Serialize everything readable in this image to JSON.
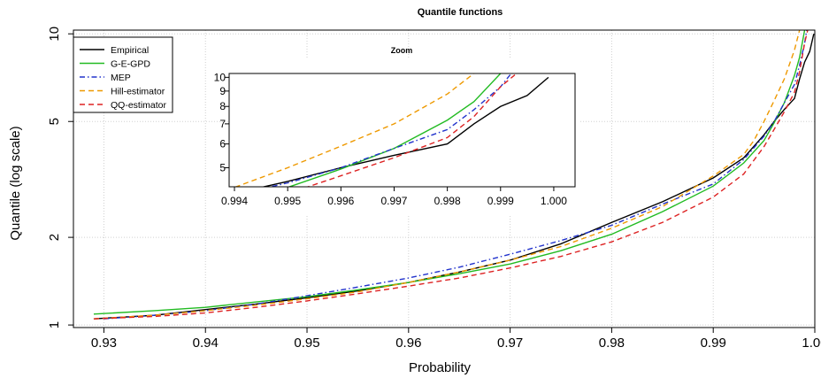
{
  "chart_data": {
    "type": "line",
    "title": "Quantile functions",
    "xlabel": "Probability",
    "ylabel": "Quantile (log scale)",
    "y_scale": "log",
    "xlim": [
      0.927,
      1.0
    ],
    "ylim": [
      0.98,
      10.3
    ],
    "x_ticks": [
      "0.93",
      "0.94",
      "0.95",
      "0.96",
      "0.97",
      "0.98",
      "0.99",
      "1.00"
    ],
    "y_ticks": [
      "1",
      "2",
      "5",
      "10"
    ],
    "grid": true,
    "legend_position": "top-left",
    "series": [
      {
        "name": "Empirical",
        "color": "#000000",
        "dash": "solid",
        "points": [
          [
            0.929,
            1.05
          ],
          [
            0.935,
            1.08
          ],
          [
            0.94,
            1.13
          ],
          [
            0.945,
            1.18
          ],
          [
            0.95,
            1.24
          ],
          [
            0.955,
            1.31
          ],
          [
            0.96,
            1.4
          ],
          [
            0.965,
            1.52
          ],
          [
            0.97,
            1.67
          ],
          [
            0.975,
            1.9
          ],
          [
            0.98,
            2.25
          ],
          [
            0.985,
            2.65
          ],
          [
            0.99,
            3.2
          ],
          [
            0.993,
            3.75
          ],
          [
            0.995,
            4.5
          ],
          [
            0.996,
            5.0
          ],
          [
            0.997,
            5.5
          ],
          [
            0.998,
            6.0
          ],
          [
            0.9985,
            7.0
          ],
          [
            0.999,
            8.0
          ],
          [
            0.9995,
            8.7
          ],
          [
            0.9999,
            10.0
          ]
        ]
      },
      {
        "name": "G-E-GPD",
        "color": "#22bb22",
        "dash": "solid",
        "points": [
          [
            0.929,
            1.09
          ],
          [
            0.935,
            1.12
          ],
          [
            0.94,
            1.15
          ],
          [
            0.945,
            1.2
          ],
          [
            0.95,
            1.25
          ],
          [
            0.955,
            1.32
          ],
          [
            0.96,
            1.4
          ],
          [
            0.965,
            1.5
          ],
          [
            0.97,
            1.62
          ],
          [
            0.975,
            1.8
          ],
          [
            0.98,
            2.05
          ],
          [
            0.985,
            2.45
          ],
          [
            0.99,
            3.0
          ],
          [
            0.993,
            3.6
          ],
          [
            0.995,
            4.3
          ],
          [
            0.996,
            4.95
          ],
          [
            0.997,
            5.8
          ],
          [
            0.998,
            7.2
          ],
          [
            0.9985,
            8.3
          ],
          [
            0.999,
            10.3
          ]
        ]
      },
      {
        "name": "MEP",
        "color": "#2233cc",
        "dash": "dashdot",
        "points": [
          [
            0.93,
            1.05
          ],
          [
            0.935,
            1.08
          ],
          [
            0.94,
            1.12
          ],
          [
            0.945,
            1.18
          ],
          [
            0.95,
            1.26
          ],
          [
            0.955,
            1.35
          ],
          [
            0.96,
            1.45
          ],
          [
            0.965,
            1.58
          ],
          [
            0.97,
            1.75
          ],
          [
            0.975,
            1.95
          ],
          [
            0.98,
            2.2
          ],
          [
            0.985,
            2.6
          ],
          [
            0.99,
            3.05
          ],
          [
            0.993,
            3.7
          ],
          [
            0.995,
            4.45
          ],
          [
            0.996,
            5.0
          ],
          [
            0.997,
            5.8
          ],
          [
            0.998,
            6.7
          ],
          [
            0.9985,
            7.8
          ],
          [
            0.999,
            9.3
          ],
          [
            0.9992,
            10.3
          ]
        ]
      },
      {
        "name": "Hill-estimator",
        "color": "#ee9900",
        "dash": "dashed",
        "points": [
          [
            0.929,
            1.05
          ],
          [
            0.935,
            1.08
          ],
          [
            0.94,
            1.12
          ],
          [
            0.945,
            1.17
          ],
          [
            0.95,
            1.23
          ],
          [
            0.955,
            1.3
          ],
          [
            0.96,
            1.4
          ],
          [
            0.965,
            1.52
          ],
          [
            0.97,
            1.67
          ],
          [
            0.975,
            1.86
          ],
          [
            0.98,
            2.15
          ],
          [
            0.985,
            2.55
          ],
          [
            0.99,
            3.25
          ],
          [
            0.993,
            3.85
          ],
          [
            0.994,
            4.3
          ],
          [
            0.995,
            5.0
          ],
          [
            0.996,
            5.9
          ],
          [
            0.997,
            7.0
          ],
          [
            0.998,
            8.8
          ],
          [
            0.9985,
            10.3
          ]
        ]
      },
      {
        "name": "QQ-estimator",
        "color": "#dd2222",
        "dash": "dashed",
        "points": [
          [
            0.929,
            1.05
          ],
          [
            0.935,
            1.07
          ],
          [
            0.94,
            1.1
          ],
          [
            0.945,
            1.15
          ],
          [
            0.95,
            1.21
          ],
          [
            0.955,
            1.28
          ],
          [
            0.96,
            1.36
          ],
          [
            0.965,
            1.45
          ],
          [
            0.97,
            1.57
          ],
          [
            0.975,
            1.72
          ],
          [
            0.98,
            1.93
          ],
          [
            0.985,
            2.25
          ],
          [
            0.99,
            2.75
          ],
          [
            0.993,
            3.3
          ],
          [
            0.995,
            4.1
          ],
          [
            0.996,
            4.7
          ],
          [
            0.997,
            5.4
          ],
          [
            0.998,
            6.3
          ],
          [
            0.9985,
            7.4
          ],
          [
            0.999,
            9.3
          ],
          [
            0.9993,
            10.3
          ]
        ]
      }
    ],
    "inset": {
      "title": "Zoom",
      "xlim": [
        0.9939,
        1.0004
      ],
      "ylim": [
        4.32,
        10.3
      ],
      "y_scale": "log",
      "x_ticks": [
        "0.994",
        "0.995",
        "0.996",
        "0.997",
        "0.998",
        "0.999",
        "1.000"
      ],
      "y_ticks": [
        "5",
        "6",
        "7",
        "8",
        "9",
        "10"
      ]
    }
  }
}
